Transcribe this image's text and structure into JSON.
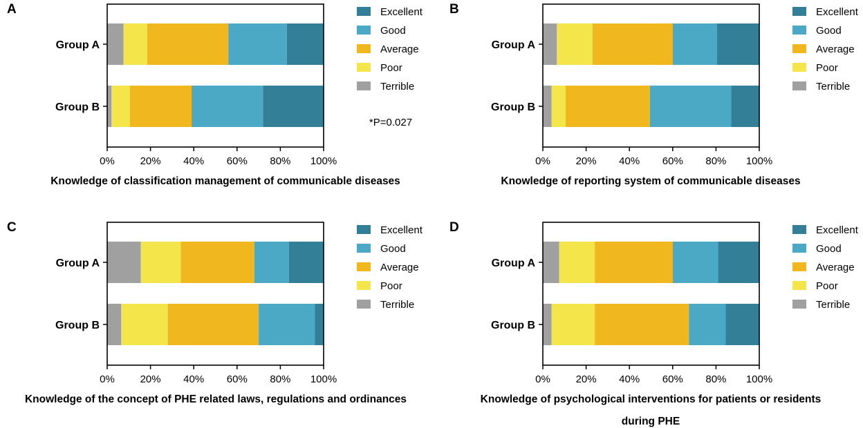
{
  "colors": {
    "Excellent": "#337f98",
    "Good": "#4ba9c5",
    "Average": "#f0b81e",
    "Poor": "#f3e54a",
    "Terrible": "#a0a0a0"
  },
  "legend_order": [
    "Excellent",
    "Good",
    "Average",
    "Poor",
    "Terrible"
  ],
  "stack_order": [
    "Terrible",
    "Poor",
    "Average",
    "Good",
    "Excellent"
  ],
  "chart_data": [
    {
      "panel": "A",
      "type": "bar",
      "orientation": "horizontal",
      "stacked": true,
      "title": "Knowledge of classification management of communicable diseases",
      "title_lines": [
        "Knowledge of classification management of communicable diseases"
      ],
      "categories": [
        "Group A",
        "Group B"
      ],
      "xlim": [
        0,
        100
      ],
      "xticks": [
        "0%",
        "20%",
        "40%",
        "60%",
        "80%",
        "100%"
      ],
      "annotation": "*P=0.027",
      "series": [
        {
          "name": "Terrible",
          "values": [
            7.5,
            2
          ]
        },
        {
          "name": "Poor",
          "values": [
            11,
            8.5
          ]
        },
        {
          "name": "Average",
          "values": [
            37.5,
            28.5
          ]
        },
        {
          "name": "Good",
          "values": [
            27,
            33
          ]
        },
        {
          "name": "Excellent",
          "values": [
            17,
            28
          ]
        }
      ]
    },
    {
      "panel": "B",
      "type": "bar",
      "orientation": "horizontal",
      "stacked": true,
      "title": "Knowledge of reporting system of communicable diseases",
      "title_lines": [
        "Knowledge of reporting system of communicable diseases"
      ],
      "categories": [
        "Group A",
        "Group B"
      ],
      "xlim": [
        0,
        100
      ],
      "xticks": [
        "0%",
        "20%",
        "40%",
        "60%",
        "80%",
        "100%"
      ],
      "annotation": "",
      "series": [
        {
          "name": "Terrible",
          "values": [
            6.5,
            4
          ]
        },
        {
          "name": "Poor",
          "values": [
            16.5,
            6.5
          ]
        },
        {
          "name": "Average",
          "values": [
            37,
            39
          ]
        },
        {
          "name": "Good",
          "values": [
            20.5,
            37.5
          ]
        },
        {
          "name": "Excellent",
          "values": [
            19.5,
            13
          ]
        }
      ]
    },
    {
      "panel": "C",
      "type": "bar",
      "orientation": "horizontal",
      "stacked": true,
      "title": "Knowledge of the concept of PHE related laws, regulations and ordinances",
      "title_lines": [
        "Knowledge of the concept of PHE related laws, regulations and ordinances"
      ],
      "categories": [
        "Group A",
        "Group B"
      ],
      "xlim": [
        0,
        100
      ],
      "xticks": [
        "0%",
        "20%",
        "40%",
        "60%",
        "80%",
        "100%"
      ],
      "annotation": "",
      "series": [
        {
          "name": "Terrible",
          "values": [
            15.5,
            6.5
          ]
        },
        {
          "name": "Poor",
          "values": [
            18.5,
            21.5
          ]
        },
        {
          "name": "Average",
          "values": [
            34,
            42
          ]
        },
        {
          "name": "Good",
          "values": [
            16,
            26
          ]
        },
        {
          "name": "Excellent",
          "values": [
            16,
            4
          ]
        }
      ]
    },
    {
      "panel": "D",
      "type": "bar",
      "orientation": "horizontal",
      "stacked": true,
      "title": "Knowledge of psychological interventions for patients or residents during PHE",
      "title_lines": [
        "Knowledge of psychological interventions for patients or residents",
        "during PHE"
      ],
      "categories": [
        "Group A",
        "Group B"
      ],
      "xlim": [
        0,
        100
      ],
      "xticks": [
        "0%",
        "20%",
        "40%",
        "60%",
        "80%",
        "100%"
      ],
      "annotation": "",
      "series": [
        {
          "name": "Terrible",
          "values": [
            7.5,
            4
          ]
        },
        {
          "name": "Poor",
          "values": [
            16.5,
            20
          ]
        },
        {
          "name": "Average",
          "values": [
            36,
            43.5
          ]
        },
        {
          "name": "Good",
          "values": [
            21,
            17
          ]
        },
        {
          "name": "Excellent",
          "values": [
            19,
            15.5
          ]
        }
      ]
    }
  ]
}
